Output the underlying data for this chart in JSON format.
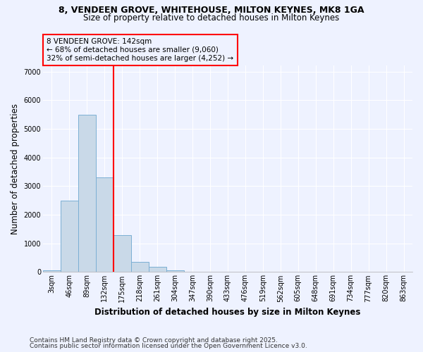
{
  "title_line1": "8, VENDEEN GROVE, WHITEHOUSE, MILTON KEYNES, MK8 1GA",
  "title_line2": "Size of property relative to detached houses in Milton Keynes",
  "xlabel": "Distribution of detached houses by size in Milton Keynes",
  "ylabel": "Number of detached properties",
  "categories": [
    "3sqm",
    "46sqm",
    "89sqm",
    "132sqm",
    "175sqm",
    "218sqm",
    "261sqm",
    "304sqm",
    "347sqm",
    "390sqm",
    "433sqm",
    "476sqm",
    "519sqm",
    "562sqm",
    "605sqm",
    "648sqm",
    "691sqm",
    "734sqm",
    "777sqm",
    "820sqm",
    "863sqm"
  ],
  "values": [
    55,
    2480,
    5480,
    3300,
    1280,
    360,
    175,
    65,
    20,
    0,
    0,
    0,
    0,
    0,
    0,
    0,
    0,
    0,
    0,
    0,
    0
  ],
  "bar_color": "#c9d9e8",
  "bar_edge_color": "#7bafd4",
  "annotation_line1": "8 VENDEEN GROVE: 142sqm",
  "annotation_line2": "← 68% of detached houses are smaller (9,060)",
  "annotation_line3": "32% of semi-detached houses are larger (4,252) →",
  "annotation_box_color": "#ff0000",
  "ylim": [
    0,
    7200
  ],
  "yticks": [
    0,
    1000,
    2000,
    3000,
    4000,
    5000,
    6000,
    7000
  ],
  "footnote_line1": "Contains HM Land Registry data © Crown copyright and database right 2025.",
  "footnote_line2": "Contains public sector information licensed under the Open Government Licence v3.0.",
  "background_color": "#eef2ff",
  "grid_color": "#ffffff",
  "title_fontsize": 9,
  "subtitle_fontsize": 8.5,
  "axis_label_fontsize": 8.5,
  "tick_fontsize": 7,
  "annotation_fontsize": 7.5,
  "footnote_fontsize": 6.5
}
